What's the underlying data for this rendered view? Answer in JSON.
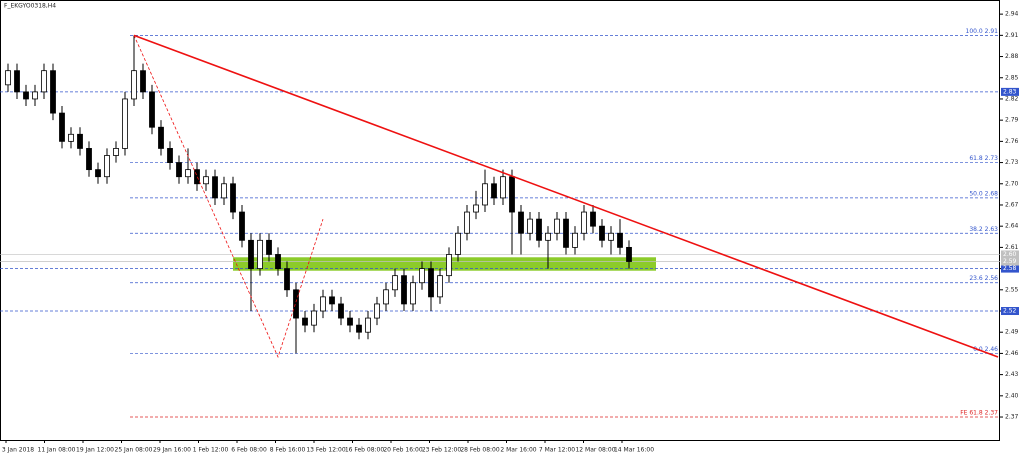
{
  "chart_data": {
    "type": "candlestick",
    "title": "F_EKGYO0318,H4",
    "x_labels": [
      "3 Jan 2018",
      "11 Jan 08:00",
      "19 Jan 12:00",
      "25 Jan 08:00",
      "29 Jan 16:00",
      "1 Feb 12:00",
      "6 Feb 08:00",
      "8 Feb 16:00",
      "13 Feb 12:00",
      "16 Feb 08:00",
      "20 Feb 16:00",
      "23 Feb 12:00",
      "28 Feb 08:00",
      "2 Mar 16:00",
      "7 Mar 12:00",
      "12 Mar 08:00",
      "14 Mar 16:00"
    ],
    "open": [
      2.84,
      2.86,
      2.83,
      2.82,
      2.83,
      2.86,
      2.8,
      2.76,
      2.77,
      2.75,
      2.72,
      2.71,
      2.74,
      2.75,
      2.82,
      2.86,
      2.83,
      2.78,
      2.75,
      2.73,
      2.71,
      2.72,
      2.7,
      2.71,
      2.68,
      2.7,
      2.66,
      2.62,
      2.58,
      2.62,
      2.6,
      2.58,
      2.55,
      2.51,
      2.5,
      2.52,
      2.54,
      2.53,
      2.51,
      2.5,
      2.49,
      2.51,
      2.53,
      2.55,
      2.57,
      2.53,
      2.56,
      2.58,
      2.54,
      2.57,
      2.6,
      2.63,
      2.66,
      2.67,
      2.7,
      2.68,
      2.71,
      2.66,
      2.63,
      2.65,
      2.62,
      2.63,
      2.65,
      2.61,
      2.63,
      2.66,
      2.64,
      2.62,
      2.63,
      2.61
    ],
    "high": [
      2.87,
      2.87,
      2.84,
      2.84,
      2.87,
      2.87,
      2.81,
      2.78,
      2.78,
      2.76,
      2.73,
      2.75,
      2.76,
      2.83,
      2.91,
      2.87,
      2.84,
      2.79,
      2.76,
      2.74,
      2.75,
      2.73,
      2.72,
      2.72,
      2.71,
      2.71,
      2.67,
      2.63,
      2.63,
      2.63,
      2.61,
      2.59,
      2.56,
      2.52,
      2.53,
      2.55,
      2.55,
      2.54,
      2.52,
      2.51,
      2.52,
      2.54,
      2.56,
      2.58,
      2.58,
      2.57,
      2.59,
      2.59,
      2.58,
      2.61,
      2.64,
      2.67,
      2.69,
      2.72,
      2.71,
      2.72,
      2.72,
      2.67,
      2.66,
      2.66,
      2.64,
      2.66,
      2.66,
      2.64,
      2.67,
      2.67,
      2.65,
      2.64,
      2.65,
      2.62
    ],
    "low": [
      2.83,
      2.82,
      2.81,
      2.81,
      2.82,
      2.79,
      2.75,
      2.75,
      2.74,
      2.71,
      2.7,
      2.7,
      2.73,
      2.74,
      2.81,
      2.82,
      2.77,
      2.74,
      2.72,
      2.7,
      2.7,
      2.69,
      2.69,
      2.67,
      2.67,
      2.65,
      2.61,
      2.52,
      2.57,
      2.59,
      2.57,
      2.54,
      2.46,
      2.49,
      2.49,
      2.51,
      2.52,
      2.5,
      2.49,
      2.48,
      2.48,
      2.5,
      2.52,
      2.54,
      2.52,
      2.52,
      2.55,
      2.52,
      2.53,
      2.56,
      2.59,
      2.62,
      2.65,
      2.66,
      2.67,
      2.67,
      2.6,
      2.6,
      2.62,
      2.61,
      2.58,
      2.62,
      2.6,
      2.6,
      2.62,
      2.63,
      2.61,
      2.6,
      2.6,
      2.58
    ],
    "close": [
      2.86,
      2.83,
      2.82,
      2.83,
      2.86,
      2.8,
      2.76,
      2.77,
      2.75,
      2.72,
      2.71,
      2.74,
      2.75,
      2.82,
      2.86,
      2.83,
      2.78,
      2.75,
      2.73,
      2.71,
      2.72,
      2.7,
      2.71,
      2.68,
      2.7,
      2.66,
      2.62,
      2.58,
      2.62,
      2.6,
      2.58,
      2.55,
      2.51,
      2.5,
      2.52,
      2.54,
      2.53,
      2.51,
      2.5,
      2.49,
      2.51,
      2.53,
      2.55,
      2.57,
      2.53,
      2.56,
      2.58,
      2.54,
      2.57,
      2.6,
      2.63,
      2.66,
      2.67,
      2.7,
      2.68,
      2.71,
      2.66,
      2.63,
      2.65,
      2.62,
      2.63,
      2.65,
      2.61,
      2.63,
      2.66,
      2.64,
      2.62,
      2.63,
      2.61,
      2.59
    ],
    "ylim": [
      2.3375,
      2.96
    ],
    "yticks": [
      2.94,
      2.91,
      2.88,
      2.85,
      2.82,
      2.79,
      2.76,
      2.73,
      {
        "value": 2.7,
        "label": "2.70"
      },
      2.67,
      2.64,
      2.61,
      2.58,
      2.55,
      2.52,
      2.49,
      2.46,
      2.43,
      {
        "value": 2.4,
        "label": "2.40"
      },
      2.37
    ],
    "levels": [
      {
        "label": "100.0 2.91",
        "value": 2.91,
        "color": "#3355cc"
      },
      {
        "label": "61.8 2.73",
        "value": 2.73,
        "color": "#3355cc"
      },
      {
        "label": "50.0 2.68",
        "value": 2.68,
        "color": "#3355cc"
      },
      {
        "label": "38.2 2.63",
        "value": 2.63,
        "color": "#3355cc"
      },
      {
        "label": "23.6 2.56",
        "value": 2.56,
        "color": "#3355cc"
      },
      {
        "label": "0.0 2.46",
        "value": 2.46,
        "color": "#3355cc"
      },
      {
        "label": "FE 61.8 2.37",
        "value": 2.37,
        "color": "#dd2222"
      }
    ],
    "price_lines": [
      {
        "label": "2.83",
        "value": 2.83,
        "color": "#3355cc"
      },
      {
        "label": "2.58",
        "value": 2.58,
        "color": "#3355cc"
      },
      {
        "label": "2.52",
        "value": 2.52,
        "color": "#3355cc"
      },
      {
        "label": "2.60",
        "value": 2.6,
        "color": "#c0c0c0"
      },
      {
        "label": "2.59",
        "value": 2.59,
        "color": "#c0c0c0"
      }
    ],
    "trendline": {
      "points": [
        [
          14,
          2.91
        ],
        [
          110,
          2.455
        ]
      ],
      "color": "#ee1111"
    },
    "zigzag": {
      "points": [
        [
          14,
          2.91
        ],
        [
          30,
          2.455
        ],
        [
          35,
          2.65
        ]
      ],
      "color": "#ee1111"
    },
    "zone": {
      "from": 25,
      "to": 72,
      "low": 2.577,
      "high": 2.596,
      "color": "#8ccb2a"
    }
  }
}
